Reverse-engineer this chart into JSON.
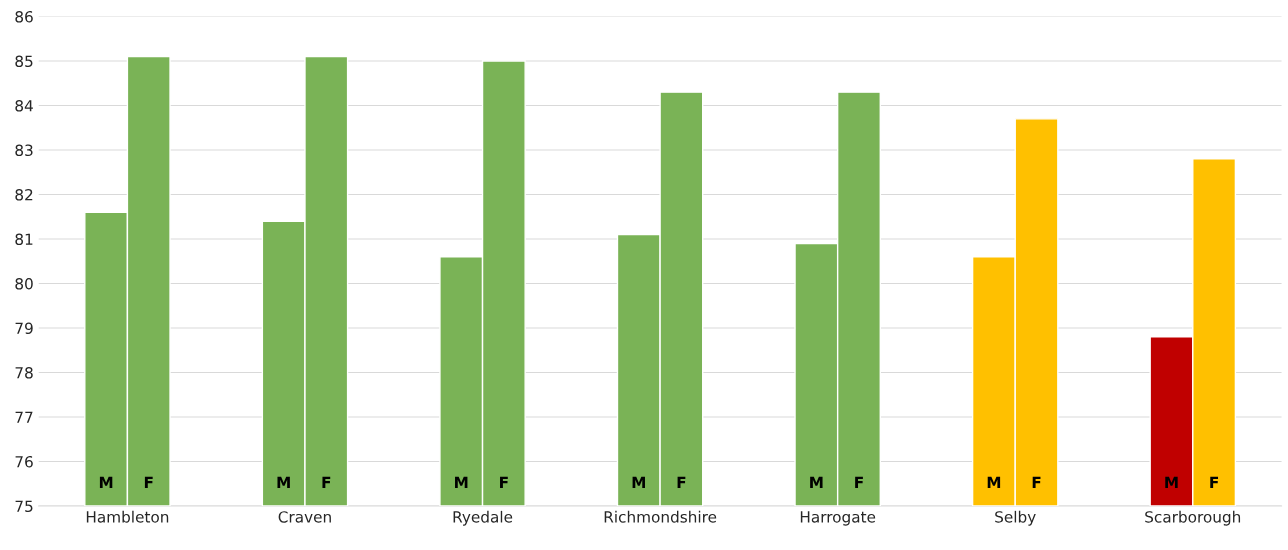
{
  "chart_data": {
    "type": "bar",
    "categories": [
      "Hambleton",
      "Craven",
      "Ryedale",
      "Richmondshire",
      "Harrogate",
      "Selby",
      "Scarborough"
    ],
    "series": [
      {
        "name": "M",
        "colors": [
          "#7ab356",
          "#7ab356",
          "#7ab356",
          "#7ab356",
          "#7ab356",
          "#ffc000",
          "#c00000"
        ],
        "values": [
          81.6,
          81.4,
          80.6,
          81.1,
          80.9,
          80.6,
          78.8
        ]
      },
      {
        "name": "F",
        "colors": [
          "#7ab356",
          "#7ab356",
          "#7ab356",
          "#7ab356",
          "#7ab356",
          "#ffc000",
          "#ffc000"
        ],
        "values": [
          85.1,
          85.1,
          85.0,
          84.3,
          84.3,
          83.7,
          82.8
        ]
      }
    ],
    "ylim": [
      75,
      86
    ],
    "yticks": [
      75,
      76,
      77,
      78,
      79,
      80,
      81,
      82,
      83,
      84,
      85,
      86
    ],
    "grid": "y"
  }
}
